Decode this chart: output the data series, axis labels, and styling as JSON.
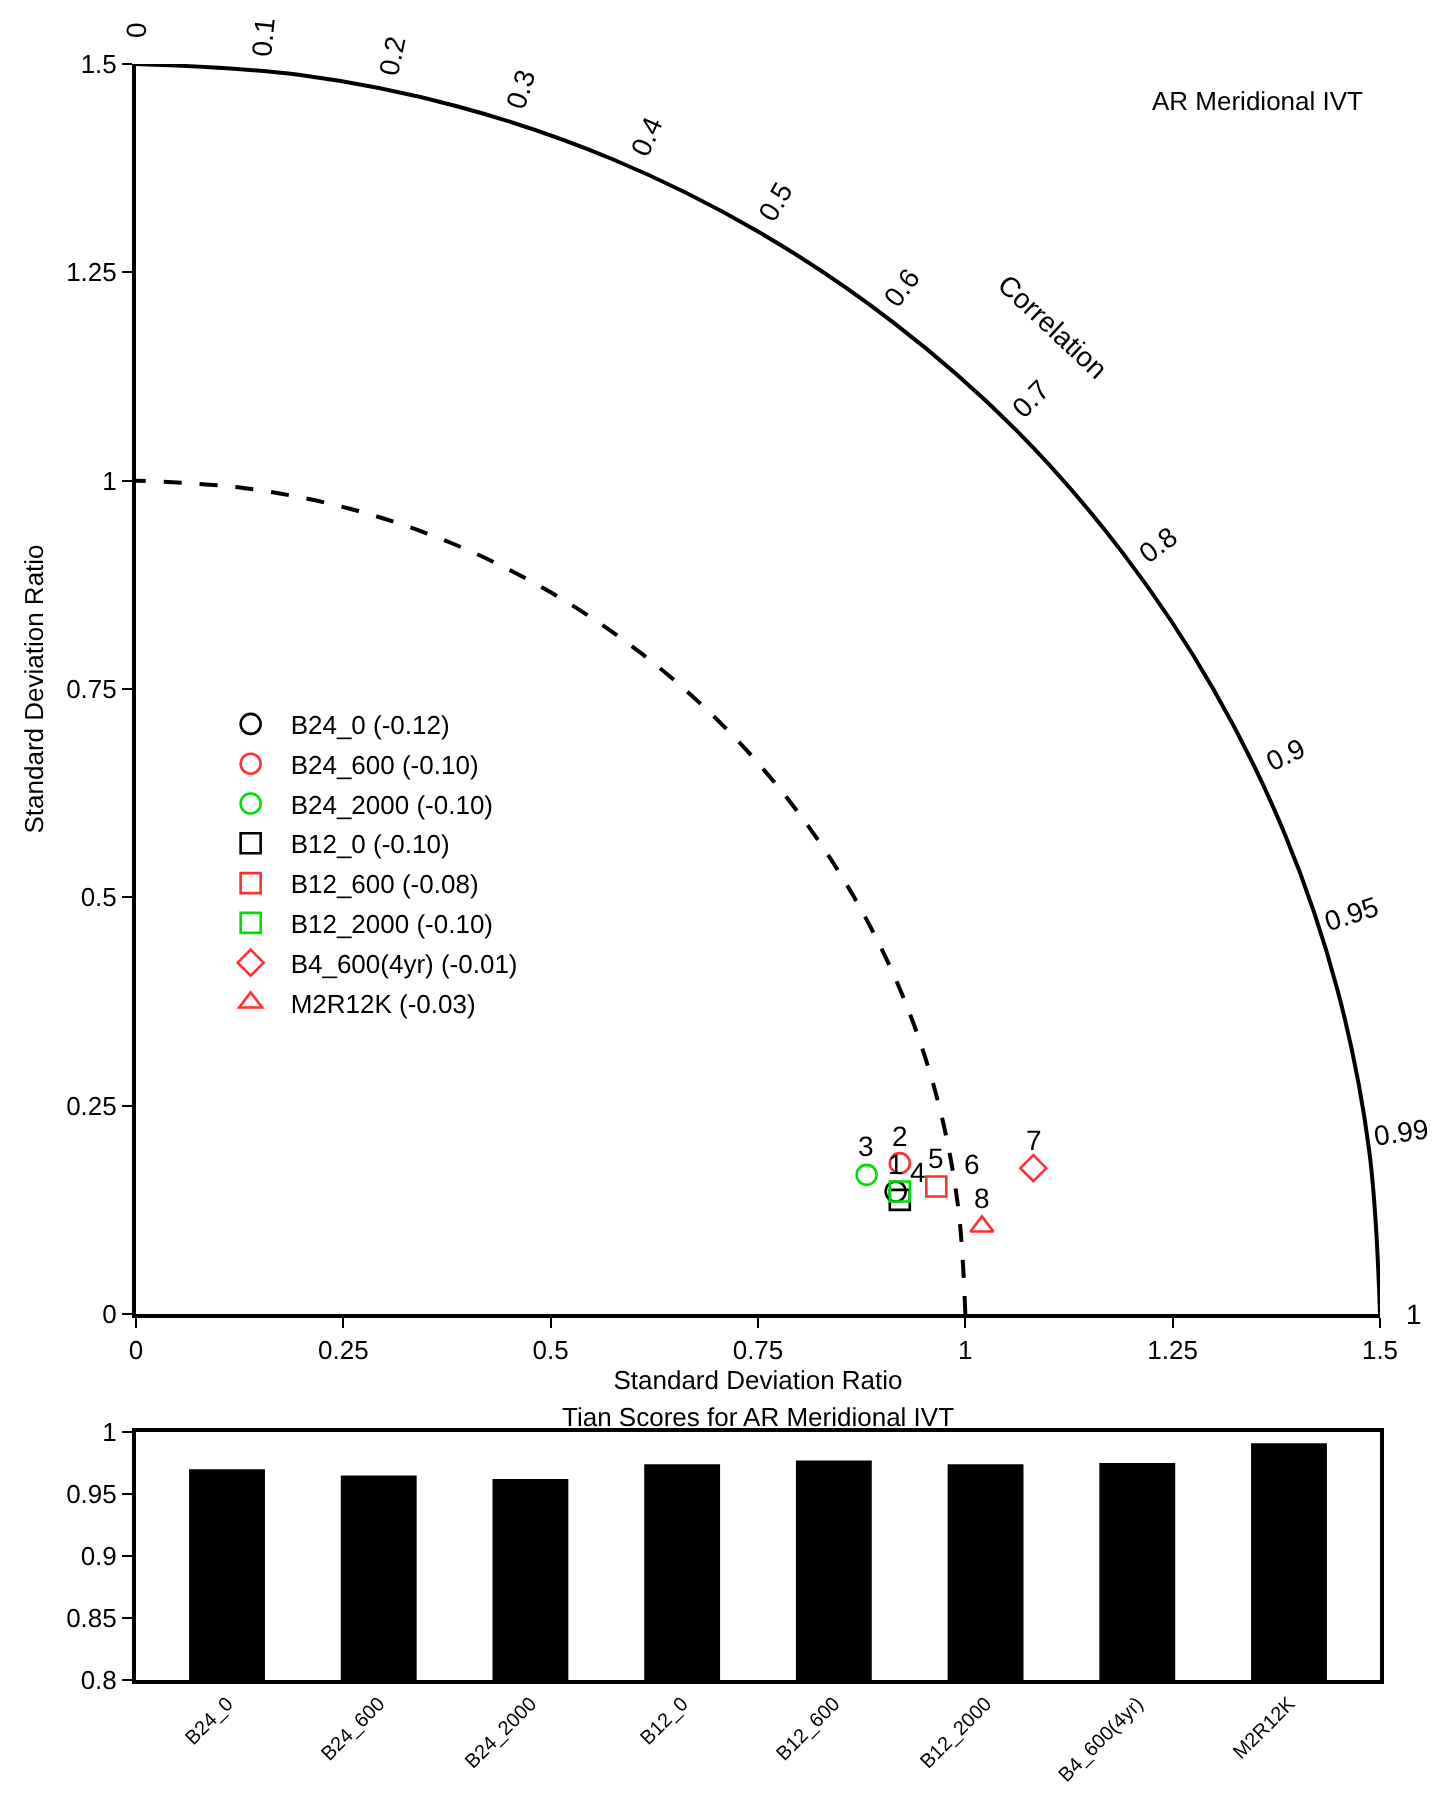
{
  "chart_data": [
    {
      "type": "scatter",
      "title": "AR Meridional IVT",
      "xlabel": "Standard Deviation Ratio",
      "ylabel": "Standard Deviation Ratio",
      "xlim": [
        0,
        1.5
      ],
      "ylim": [
        0,
        1.5
      ],
      "xticks": [
        0,
        0.25,
        0.5,
        0.75,
        1,
        1.25,
        1.5
      ],
      "yticks": [
        0,
        0.25,
        0.5,
        0.75,
        1,
        1.25,
        1.5
      ],
      "legend": "left",
      "series": [
        {
          "name": "B24_0 (-0.12)",
          "color": "#000000",
          "marker": "circle",
          "x": [
            0.916
          ],
          "values": [
            0.147
          ]
        },
        {
          "name": "B24_600 (-0.10)",
          "color": "#ff3030",
          "marker": "circle",
          "x": [
            0.921
          ],
          "values": [
            0.181
          ]
        },
        {
          "name": "B24_2000 (-0.10)",
          "color": "#00dd00",
          "marker": "circle",
          "x": [
            0.881
          ],
          "values": [
            0.167
          ]
        },
        {
          "name": "B12_0 (-0.10)",
          "color": "#000000",
          "marker": "square",
          "x": [
            0.921
          ],
          "values": [
            0.137
          ]
        },
        {
          "name": "B12_600 (-0.08)",
          "color": "#ff3030",
          "marker": "square",
          "x": [
            0.965
          ],
          "values": [
            0.153
          ]
        },
        {
          "name": "B12_2000 (-0.10)",
          "color": "#00dd00",
          "marker": "square",
          "x": [
            0.921
          ],
          "values": [
            0.147
          ]
        },
        {
          "name": "B4_600(4yr) (-0.01)",
          "color": "#ff3030",
          "marker": "diamond",
          "x": [
            1.082
          ],
          "values": [
            0.175
          ]
        },
        {
          "name": "M2R12K (-0.03)",
          "color": "#ff3030",
          "marker": "triangle",
          "x": [
            1.02
          ],
          "values": [
            0.105
          ]
        },
        {
          "type": "line",
          "line_style": "dashed",
          "marker": "none",
          "color": "#000000",
          "x": [
            1,
            0.991,
            0.966,
            0.924,
            0.866,
            0.793,
            0.707,
            0.609,
            0.5,
            0.383,
            0.259,
            0.131,
            0
          ],
          "values": [
            0,
            0.131,
            0.259,
            0.383,
            0.5,
            0.609,
            0.707,
            0.793,
            0.866,
            0.924,
            0.966,
            0.991,
            1
          ]
        },
        {
          "type": "line",
          "line_style": "solid",
          "marker": "none",
          "color": "#000000",
          "x": [
            1.5,
            1.487,
            1.449,
            1.386,
            1.299,
            1.19,
            1.061,
            0.913,
            0.75,
            0.574,
            0.388,
            0.196,
            0
          ],
          "values": [
            0,
            0.196,
            0.388,
            0.574,
            0.75,
            0.913,
            1.061,
            1.19,
            1.299,
            1.386,
            1.449,
            1.487,
            1.5
          ]
        }
      ],
      "annotations": [
        {
          "text": "1",
          "x": 0.916,
          "y": 0.147
        },
        {
          "text": "2",
          "x": 0.921,
          "y": 0.181
        },
        {
          "text": "3",
          "x": 0.881,
          "y": 0.167
        },
        {
          "text": "4",
          "x": 0.921,
          "y": 0.137
        },
        {
          "text": "5",
          "x": 0.965,
          "y": 0.153
        },
        {
          "text": "6",
          "x": 0.921,
          "y": 0.147
        },
        {
          "text": "7",
          "x": 1.082,
          "y": 0.175
        },
        {
          "text": "8",
          "x": 1.02,
          "y": 0.105
        },
        {
          "text": "0",
          "x": 0,
          "y": 1.5
        },
        {
          "text": "0.1",
          "x": 0.15,
          "y": 1.492
        },
        {
          "text": "0.2",
          "x": 0.3,
          "y": 1.47
        },
        {
          "text": "0.3",
          "x": 0.45,
          "y": 1.431
        },
        {
          "text": "0.4",
          "x": 0.6,
          "y": 1.375
        },
        {
          "text": "0.5",
          "x": 0.75,
          "y": 1.299
        },
        {
          "text": "0.6",
          "x": 0.9,
          "y": 1.2
        },
        {
          "text": "0.7",
          "x": 1.05,
          "y": 1.071
        },
        {
          "text": "0.8",
          "x": 1.2,
          "y": 0.9
        },
        {
          "text": "0.9",
          "x": 1.35,
          "y": 0.654
        },
        {
          "text": "0.95",
          "x": 1.425,
          "y": 0.468
        },
        {
          "text": "0.99",
          "x": 1.485,
          "y": 0.212
        },
        {
          "text": "1",
          "x": 1.5,
          "y": 0
        },
        "Correlation"
      ]
    },
    {
      "type": "bar",
      "title": "Tian Scores for AR Meridional IVT",
      "categories": [
        "B24_0",
        "B24_600",
        "B24_2000",
        "B12_0",
        "B12_600",
        "B12_2000",
        "B4_600(4yr)",
        "M2R12K"
      ],
      "values": [
        0.97,
        0.965,
        0.962,
        0.974,
        0.977,
        0.974,
        0.975,
        0.991
      ],
      "color": "#000000",
      "ylim": [
        0.8,
        1
      ],
      "yticks": [
        0.8,
        0.85,
        0.9,
        0.95,
        1
      ],
      "legend": false
    }
  ]
}
